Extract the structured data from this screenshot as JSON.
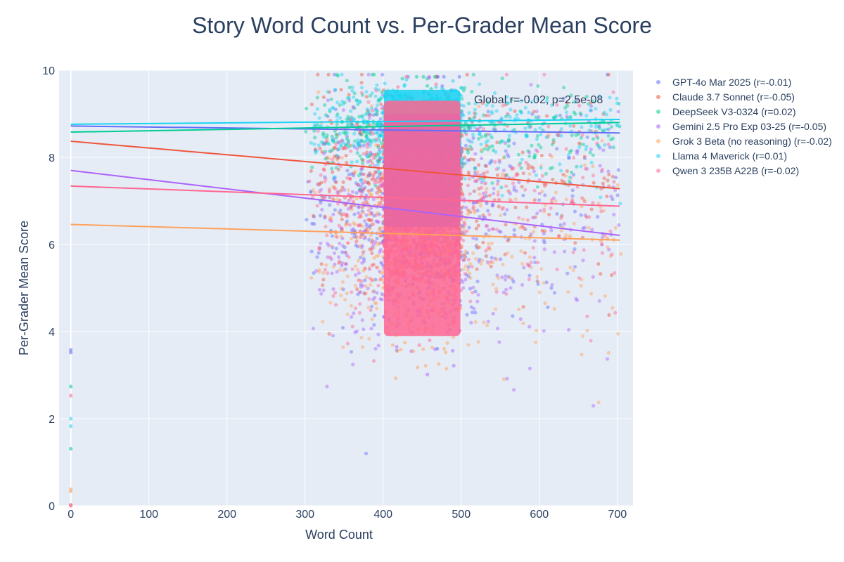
{
  "chart_data": {
    "type": "scatter",
    "title": "Story Word Count vs. Per-Grader Mean Score",
    "xlabel": "Word Count",
    "ylabel": "Per-Grader Mean Score",
    "xlim": [
      -15,
      720
    ],
    "ylim": [
      0,
      10
    ],
    "x_ticks": [
      0,
      100,
      200,
      300,
      400,
      500,
      600,
      700
    ],
    "y_ticks": [
      0,
      2,
      4,
      6,
      8,
      10
    ],
    "grid": true,
    "legend_position": "top-right outside",
    "annotation": "Global r=-0.02, p=2.5e-08",
    "series": [
      {
        "name": "GPT-4o Mar 2025 (r=-0.01)",
        "color": "#636efa",
        "trend": [
          [
            0,
            8.72
          ],
          [
            703,
            8.56
          ]
        ],
        "mean": 6.9,
        "spread": 1.45,
        "outliers": [
          [
            0,
            3.58
          ],
          [
            0,
            3.52
          ]
        ]
      },
      {
        "name": "Claude 3.7 Sonnet (r=-0.05)",
        "color": "#ef553b",
        "trend": [
          [
            0,
            8.37
          ],
          [
            703,
            7.28
          ]
        ],
        "mean": 7.4,
        "spread": 1.15,
        "outliers": [
          [
            0,
            0.02
          ]
        ]
      },
      {
        "name": "DeepSeek V3-0324 (r=0.02)",
        "color": "#00cc96",
        "trend": [
          [
            0,
            8.58
          ],
          [
            703,
            8.8
          ]
        ],
        "mean": 8.6,
        "spread": 0.55,
        "outliers": [
          [
            0,
            2.74
          ],
          [
            0,
            1.31
          ]
        ]
      },
      {
        "name": "Gemini 2.5 Pro Exp 03-25 (r=-0.05)",
        "color": "#ab63fa",
        "trend": [
          [
            0,
            7.7
          ],
          [
            703,
            6.21
          ]
        ],
        "mean": 6.5,
        "spread": 1.45,
        "outliers": []
      },
      {
        "name": "Grok 3 Beta (no reasoning) (r=-0.02)",
        "color": "#ffa15a",
        "trend": [
          [
            0,
            6.46
          ],
          [
            703,
            6.1
          ]
        ],
        "mean": 6.1,
        "spread": 1.2,
        "outliers": [
          [
            0,
            0.38
          ],
          [
            0,
            0.33
          ]
        ]
      },
      {
        "name": "Llama 4 Maverick (r=0.01)",
        "color": "#19d3f3",
        "trend": [
          [
            0,
            8.76
          ],
          [
            703,
            8.87
          ]
        ],
        "mean": 8.7,
        "spread": 0.5,
        "outliers": [
          [
            0,
            2.0
          ],
          [
            0,
            1.83
          ]
        ]
      },
      {
        "name": "Qwen 3 235B A22B (r=-0.02)",
        "color": "#ff6692",
        "trend": [
          [
            0,
            7.34
          ],
          [
            703,
            6.88
          ]
        ],
        "mean": 6.9,
        "spread": 1.25,
        "outliers": [
          [
            0,
            2.53
          ],
          [
            0,
            0.0
          ]
        ]
      }
    ]
  }
}
